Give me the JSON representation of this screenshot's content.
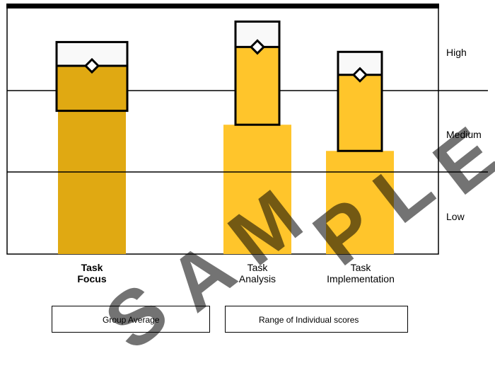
{
  "chart_data": {
    "type": "bar",
    "categories": [
      {
        "line1": "Task",
        "line2": "Focus",
        "bold": true
      },
      {
        "line1": "Task",
        "line2": "Analysis",
        "bold": false
      },
      {
        "line1": "Task",
        "line2": "Implementation",
        "bold": false
      }
    ],
    "values": [
      2.3,
      2.53,
      2.19
    ],
    "range_low": [
      1.75,
      1.58,
      1.26
    ],
    "range_high": [
      2.59,
      2.84,
      2.47
    ],
    "ylim": [
      0,
      3
    ],
    "y_bands": [
      "Low",
      "Medium",
      "High"
    ],
    "colors": {
      "bar_dark": "#E0A912",
      "bar_light": "#FFC52B",
      "range_fill_light": "#F9F9F9",
      "line": "#000000"
    }
  },
  "legend": {
    "group_average": "Group Average",
    "range": "Range of Individual scores"
  },
  "watermark": "SAMPLE"
}
